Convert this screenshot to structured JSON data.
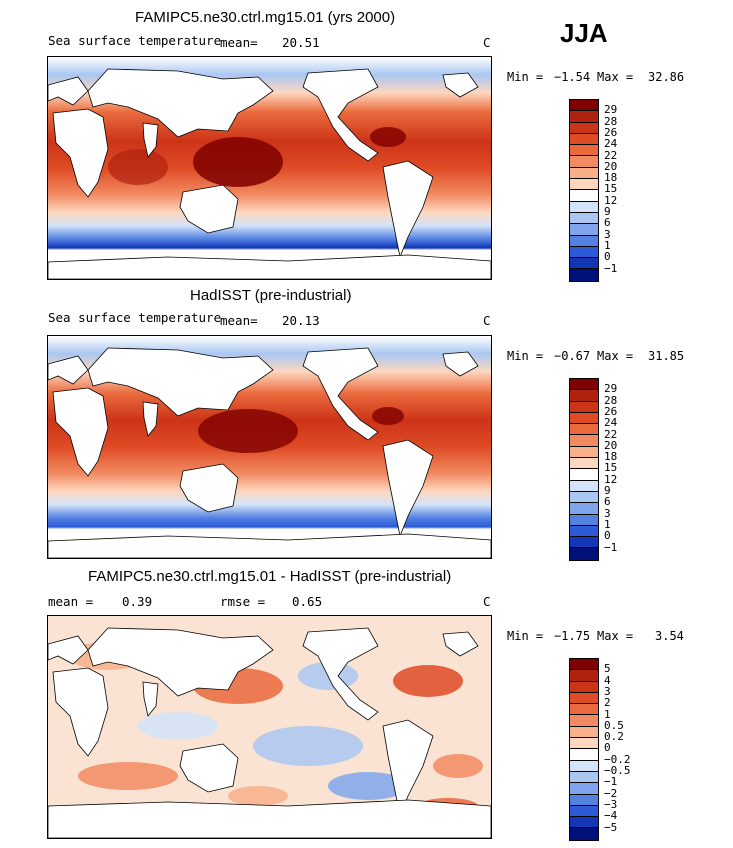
{
  "season": "JJA",
  "panels": [
    {
      "title": "FAMIPC5.ne30.ctrl.mg15.01 (yrs 2000)",
      "subtitle_left": "Sea surface temperature",
      "mean_label": "mean=",
      "mean_value": "20.51",
      "units": "C",
      "min_label": "Min =",
      "min_value": "−1.54",
      "max_label": "Max =",
      "max_value": "32.86",
      "colorbar_labels": [
        "29",
        "28",
        "26",
        "24",
        "22",
        "20",
        "18",
        "15",
        "12",
        "9",
        "6",
        "3",
        "1",
        "0",
        "−1"
      ],
      "colorbar_colors": [
        "#7f0000",
        "#b0210f",
        "#cc3418",
        "#de4b25",
        "#ea6a3d",
        "#f28b61",
        "#f8b08b",
        "#fdd7bf",
        "#ffffff",
        "#d3e3f9",
        "#aac7f2",
        "#7fa6ec",
        "#5281e2",
        "#2d5ad6",
        "#1336b6",
        "#00107a"
      ]
    },
    {
      "title": "HadISST (pre-industrial)",
      "subtitle_left": "Sea surface temperature",
      "mean_label": "mean=",
      "mean_value": "20.13",
      "units": "C",
      "min_label": "Min =",
      "min_value": "−0.67",
      "max_label": "Max =",
      "max_value": "31.85",
      "colorbar_labels": [
        "29",
        "28",
        "26",
        "24",
        "22",
        "20",
        "18",
        "15",
        "12",
        "9",
        "6",
        "3",
        "1",
        "0",
        "−1"
      ],
      "colorbar_colors": [
        "#7f0000",
        "#b0210f",
        "#cc3418",
        "#de4b25",
        "#ea6a3d",
        "#f28b61",
        "#f8b08b",
        "#fdd7bf",
        "#ffffff",
        "#d3e3f9",
        "#aac7f2",
        "#7fa6ec",
        "#5281e2",
        "#2d5ad6",
        "#1336b6",
        "#00107a"
      ]
    },
    {
      "title": "FAMIPC5.ne30.ctrl.mg15.01 - HadISST (pre-industrial)",
      "mean_label": "mean =",
      "mean_value": "0.39",
      "rmse_label": "rmse =",
      "rmse_value": "0.65",
      "units": "C",
      "min_label": "Min =",
      "min_value": "−1.75",
      "max_label": "Max =",
      "max_value": "3.54",
      "colorbar_labels": [
        "5",
        "4",
        "3",
        "2",
        "1",
        "0.5",
        "0.2",
        "0",
        "−0.2",
        "−0.5",
        "−1",
        "−2",
        "−3",
        "−4",
        "−5"
      ],
      "colorbar_colors": [
        "#7f0000",
        "#b0210f",
        "#cc3418",
        "#de4b25",
        "#ea6a3d",
        "#f28b61",
        "#f8b08b",
        "#fdd7bf",
        "#ffffff",
        "#d3e3f9",
        "#aac7f2",
        "#7fa6ec",
        "#5281e2",
        "#2d5ad6",
        "#1336b6",
        "#00107a"
      ]
    }
  ]
}
